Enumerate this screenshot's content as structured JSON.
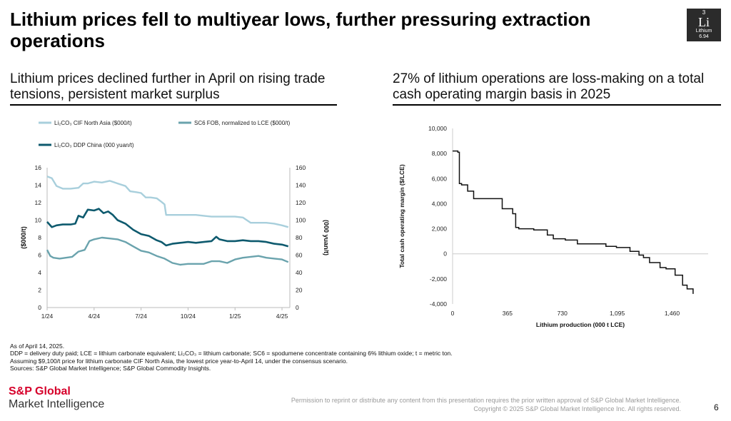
{
  "title": "Lithium prices fell to multiyear lows, further pressuring extraction operations",
  "element_box": {
    "number": "3",
    "symbol": "Li",
    "name": "Lithium",
    "mass": "6.94"
  },
  "left_subtitle": "Lithium prices declined further in April on rising trade tensions, persistent market surplus",
  "right_subtitle": "27% of lithium operations are loss-making on a total cash operating margin basis in 2025",
  "notes": {
    "line1": "As of April 14, 2025.",
    "line2": "DDP = delivery duty paid; LCE = lithium carbonate equivalent; Li₂CO₃ = lithium carbonate; SC6 = spodumene concentrate containing 6% lithium oxide; t = metric ton.",
    "line3": "Assuming $9,100/t price for lithium carbonate CIF North Asia, the lowest price year-to-April 14, under the consensus scenario.",
    "line4": "Sources: S&P Global Market Intelligence; S&P Global Commodity Insights."
  },
  "brand": {
    "name1": "S&P Global",
    "name2": "Market Intelligence"
  },
  "permission": {
    "line1": "Permission to reprint or distribute any content from this presentation requires the prior written approval of S&P Global Market Intelligence.",
    "line2": "Copyright © 2025 S&P Global Market Intelligence Inc. All rights reserved."
  },
  "page_number": "6",
  "chart_data": [
    {
      "type": "line",
      "title": "",
      "xlabel": "",
      "ylabel": "($000/t)",
      "ylabel_right": "(000 yuan/t)",
      "ylim": [
        0,
        16
      ],
      "yticks": [
        0,
        2,
        4,
        6,
        8,
        10,
        12,
        14,
        16
      ],
      "ylim_right": [
        0,
        160
      ],
      "yticks_right": [
        0,
        20,
        40,
        60,
        80,
        100,
        120,
        140,
        160
      ],
      "xlim": [
        0,
        15.5
      ],
      "xticks": [
        {
          "x": 0,
          "label": "1/24"
        },
        {
          "x": 3,
          "label": "4/24"
        },
        {
          "x": 6,
          "label": "7/24"
        },
        {
          "x": 9,
          "label": "10/24"
        },
        {
          "x": 12,
          "label": "1/25"
        },
        {
          "x": 15,
          "label": "4/25"
        }
      ],
      "x_unit": "months since Jan 2024",
      "series": [
        {
          "name": "Li₂CO₃ CIF North Asia ($000/t)",
          "axis": "left",
          "color": "#a8cfdc",
          "x": [
            0,
            0.3,
            0.6,
            1,
            1.5,
            2,
            2.3,
            2.6,
            3,
            3.5,
            4,
            4.5,
            5,
            5.3,
            5.7,
            6,
            6.3,
            6.6,
            7,
            7.3,
            7.5,
            7.6,
            8,
            8.5,
            9,
            9.5,
            10,
            10.5,
            11,
            11.5,
            12,
            12.5,
            13,
            13.5,
            14,
            14.5,
            15,
            15.4
          ],
          "y": [
            15.0,
            14.8,
            13.9,
            13.6,
            13.6,
            13.7,
            14.2,
            14.2,
            14.4,
            14.3,
            14.5,
            14.2,
            13.9,
            13.3,
            13.2,
            13.1,
            12.6,
            12.6,
            12.5,
            12.1,
            11.8,
            10.6,
            10.6,
            10.6,
            10.6,
            10.6,
            10.5,
            10.4,
            10.4,
            10.4,
            10.4,
            10.3,
            9.7,
            9.7,
            9.7,
            9.6,
            9.4,
            9.2
          ]
        },
        {
          "name": "SC6 FOB, normalized to LCE ($000/t)",
          "axis": "left",
          "color": "#6aa3ad",
          "x": [
            0,
            0.2,
            0.4,
            0.8,
            1.2,
            1.6,
            2,
            2.4,
            2.7,
            3,
            3.5,
            4,
            4.5,
            5,
            5.5,
            6,
            6.5,
            7,
            7.5,
            8,
            8.5,
            9,
            9.5,
            10,
            10.5,
            11,
            11.5,
            12,
            12.5,
            13,
            13.5,
            14,
            14.5,
            15,
            15.4
          ],
          "y": [
            6.6,
            5.9,
            5.7,
            5.6,
            5.7,
            5.8,
            6.4,
            6.6,
            7.6,
            7.8,
            8.0,
            7.9,
            7.8,
            7.5,
            7.0,
            6.5,
            6.3,
            5.9,
            5.6,
            5.1,
            4.9,
            5.0,
            5.0,
            5.0,
            5.3,
            5.3,
            5.1,
            5.5,
            5.7,
            5.8,
            5.9,
            5.7,
            5.6,
            5.5,
            5.2
          ]
        },
        {
          "name": "Li₂CO₃ DDP China (000 yuan/t)",
          "axis": "right",
          "color": "#0e5a6e",
          "x": [
            0,
            0.3,
            0.6,
            1,
            1.5,
            1.8,
            2,
            2.3,
            2.6,
            3,
            3.3,
            3.6,
            3.9,
            4.2,
            4.5,
            5,
            5.5,
            6,
            6.5,
            7,
            7.3,
            7.6,
            8,
            8.5,
            9,
            9.5,
            10,
            10.5,
            10.8,
            11,
            11.5,
            12,
            12.5,
            13,
            13.5,
            14,
            14.5,
            15,
            15.4
          ],
          "y": [
            98,
            92,
            94,
            95,
            95,
            96,
            105,
            103,
            112,
            111,
            113,
            108,
            110,
            106,
            100,
            96,
            89,
            84,
            82,
            77,
            75,
            71,
            73,
            74,
            75,
            74,
            75,
            76,
            81,
            78,
            76,
            76,
            77,
            76,
            76,
            75,
            73,
            72,
            70
          ]
        }
      ]
    },
    {
      "type": "line",
      "title": "",
      "xlabel": "Lithium production (000 t LCE)",
      "ylabel": "Total cash operating margin ($/LCE)",
      "ylim": [
        -4000,
        10000
      ],
      "yticks": [
        -4000,
        -2000,
        0,
        2000,
        4000,
        6000,
        8000,
        10000
      ],
      "ytick_labels": [
        "-4,000",
        "-2,000",
        "0",
        "2,000",
        "4,000",
        "6,000",
        "8,000",
        "10,000"
      ],
      "xlim": [
        0,
        1700
      ],
      "xticks": [
        0,
        365,
        730,
        1095,
        1460
      ],
      "xtick_labels": [
        "0",
        "365",
        "730",
        "1,095",
        "1,460"
      ],
      "series": [
        {
          "name": "Cost curve",
          "color": "#111111",
          "step": true,
          "x": [
            0,
            35,
            45,
            60,
            100,
            140,
            330,
            400,
            420,
            440,
            540,
            630,
            670,
            750,
            830,
            1020,
            1090,
            1180,
            1240,
            1270,
            1310,
            1380,
            1420,
            1480,
            1530,
            1560,
            1600
          ],
          "y": [
            8200,
            8100,
            5600,
            5500,
            5000,
            4400,
            3600,
            3200,
            2100,
            2000,
            1900,
            1500,
            1200,
            1100,
            800,
            600,
            500,
            200,
            -100,
            -300,
            -700,
            -1100,
            -1200,
            -1700,
            -2500,
            -2800,
            -3200
          ]
        }
      ]
    }
  ]
}
